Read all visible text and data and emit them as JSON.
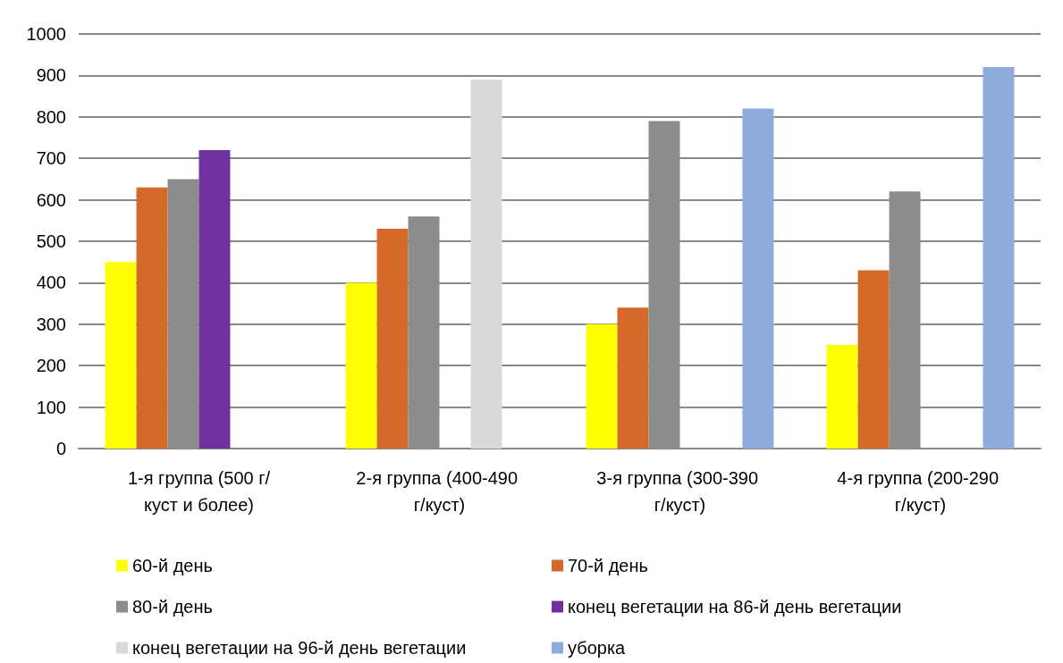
{
  "chart_data": {
    "type": "bar",
    "categories": [
      "1-я группа (500 г/куст и более)",
      "2-я группа (400-490 г/куст)",
      "3-я группа (300-390 г/куст)",
      "4-я группа (200-290 г/куст)"
    ],
    "series": [
      {
        "name": "60-й день",
        "color": "#ffff00",
        "values": [
          450,
          400,
          300,
          250
        ]
      },
      {
        "name": "70-й день",
        "color": "#d4692a",
        "values": [
          630,
          530,
          340,
          430
        ]
      },
      {
        "name": "80-й день",
        "color": "#8c8c8c",
        "values": [
          650,
          560,
          790,
          620
        ]
      },
      {
        "name": "конец вегетации на 86-й день вегетации",
        "color": "#7030a0",
        "values": [
          720,
          0,
          null,
          0
        ]
      },
      {
        "name": "конец вегетации на 96-й день вегетации",
        "color": "#d9d9d9",
        "values": [
          0,
          890,
          null,
          0
        ]
      },
      {
        "name": "уборка",
        "color": "#8faadc",
        "values": [
          0,
          0,
          820,
          920
        ]
      }
    ],
    "ylim": [
      0,
      1000
    ],
    "yticks": [
      0,
      100,
      200,
      300,
      400,
      500,
      600,
      700,
      800,
      900,
      1000
    ],
    "grid": "y",
    "legend": "bottom"
  }
}
